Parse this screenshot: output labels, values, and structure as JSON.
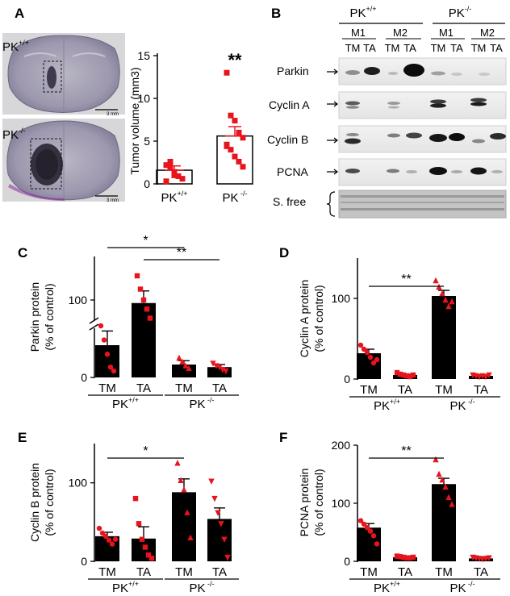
{
  "panel_letters": {
    "A": "A",
    "B": "B",
    "C": "C",
    "D": "D",
    "E": "E",
    "F": "F"
  },
  "panel_a": {
    "genotype_wt": "PK",
    "genotype_wt_sup": "+/+",
    "genotype_ko": "PK",
    "genotype_ko_sup": "-/-",
    "scale_bar_label": "3 mm"
  },
  "chart_data": [
    {
      "panel": "A",
      "type": "bar",
      "ylabel": "Tumor volume (mm3)",
      "ylim": [
        0,
        15
      ],
      "yticks": [
        "0",
        "5",
        "10",
        "15"
      ],
      "categories": [
        "PK+/+",
        "PK -/-"
      ],
      "x_tick_main": [
        "PK",
        "PK"
      ],
      "x_tick_sup": [
        "+/+",
        " -/-"
      ],
      "means": [
        1.6,
        5.6
      ],
      "sem": [
        0.5,
        1.1
      ],
      "points": [
        [
          2.2,
          2.0,
          1.4,
          0.9,
          0.6,
          0.3,
          2.6,
          1.0
        ],
        [
          13.0,
          8.0,
          7.4,
          6.0,
          5.4,
          4.6,
          4.0,
          3.2,
          2.6,
          2.0,
          4.4
        ]
      ],
      "significance": "**"
    },
    {
      "panel": "C",
      "type": "bar",
      "ylabel_line1": "Parkin  protein",
      "ylabel_line2": "(% of control)",
      "yticks": [
        "0",
        "100"
      ],
      "y_axis": "broken",
      "categories": [
        "TM",
        "TA",
        "TM",
        "TA"
      ],
      "groups": [
        "PK+/+",
        "PK -/-"
      ],
      "means": [
        25,
        95,
        10,
        8
      ],
      "sem": [
        11,
        20,
        3,
        2
      ],
      "points": [
        [
          40,
          29,
          18,
          8,
          5
        ],
        [
          140,
          118,
          100,
          85,
          70
        ],
        [
          15,
          12,
          9,
          7
        ],
        [
          11,
          9,
          8,
          6,
          5
        ]
      ],
      "significance": [
        {
          "from": 0,
          "to": 2,
          "label": "*"
        },
        {
          "from": 1,
          "to": 3,
          "label": "**"
        }
      ]
    },
    {
      "panel": "D",
      "type": "bar",
      "ylabel_line1": "Cyclin A  protein",
      "ylabel_line2": "(% of control)",
      "ylim": [
        0,
        150
      ],
      "yticks": [
        "0",
        "100"
      ],
      "categories": [
        "TM",
        "TA",
        "TM",
        "TA"
      ],
      "groups": [
        "PK+/+",
        "PK -/-"
      ],
      "means": [
        32,
        5,
        103,
        4
      ],
      "sem": [
        5,
        1,
        7,
        1
      ],
      "points": [
        [
          42,
          37,
          33,
          27,
          20,
          24
        ],
        [
          8,
          6,
          5,
          4,
          3,
          5
        ],
        [
          122,
          114,
          106,
          98,
          90,
          96
        ],
        [
          5,
          4,
          3,
          4,
          3,
          5
        ]
      ],
      "significance": [
        {
          "from": 0,
          "to": 2,
          "label": "**"
        }
      ]
    },
    {
      "panel": "E",
      "type": "bar",
      "ylabel_line1": "Cyclin B  protein",
      "ylabel_line2": "(% of control)",
      "ylim": [
        0,
        150
      ],
      "yticks": [
        "0",
        "100"
      ],
      "categories": [
        "TM",
        "TA",
        "TM",
        "TA"
      ],
      "groups": [
        "PK+/+",
        "PK -/-"
      ],
      "means": [
        32,
        29,
        88,
        54
      ],
      "sem": [
        5,
        15,
        17,
        14
      ],
      "points": [
        [
          42,
          36,
          32,
          27,
          22,
          28
        ],
        [
          80,
          48,
          28,
          18,
          8,
          4
        ],
        [
          125,
          103,
          91,
          62,
          30
        ],
        [
          102,
          80,
          62,
          48,
          28,
          5
        ]
      ],
      "significance": [
        {
          "from": 0,
          "to": 2,
          "label": "*"
        }
      ]
    },
    {
      "panel": "F",
      "type": "bar",
      "ylabel_line1": "PCNA  protein",
      "ylabel_line2": "(% of control)",
      "ylim": [
        0,
        200
      ],
      "yticks": [
        "0",
        "100",
        "200"
      ],
      "categories": [
        "TM",
        "TA",
        "TM",
        "TA"
      ],
      "groups": [
        "PK+/+",
        "PK -/-"
      ],
      "means": [
        58,
        7,
        133,
        5
      ],
      "sem": [
        7,
        1,
        10,
        1
      ],
      "points": [
        [
          70,
          64,
          58,
          52,
          44,
          30
        ],
        [
          9,
          8,
          7,
          6,
          6,
          7
        ],
        [
          175,
          150,
          140,
          128,
          110,
          98
        ],
        [
          7,
          6,
          5,
          4,
          5,
          6
        ]
      ],
      "significance": [
        {
          "from": 0,
          "to": 2,
          "label": "**"
        }
      ]
    }
  ],
  "blot": {
    "wt_label": "PK",
    "wt_sup": "+/+",
    "ko_label": "PK",
    "ko_sup": "-/-",
    "mouse_labels": [
      "M1",
      "M2",
      "M1",
      "M2"
    ],
    "lane_labels": [
      "TM",
      "TA",
      "TM",
      "TA",
      "TM",
      "TA",
      "TM",
      "TA"
    ],
    "rows": [
      "Parkin",
      "Cyclin A",
      "Cyclin B",
      "PCNA",
      "S. free"
    ]
  }
}
